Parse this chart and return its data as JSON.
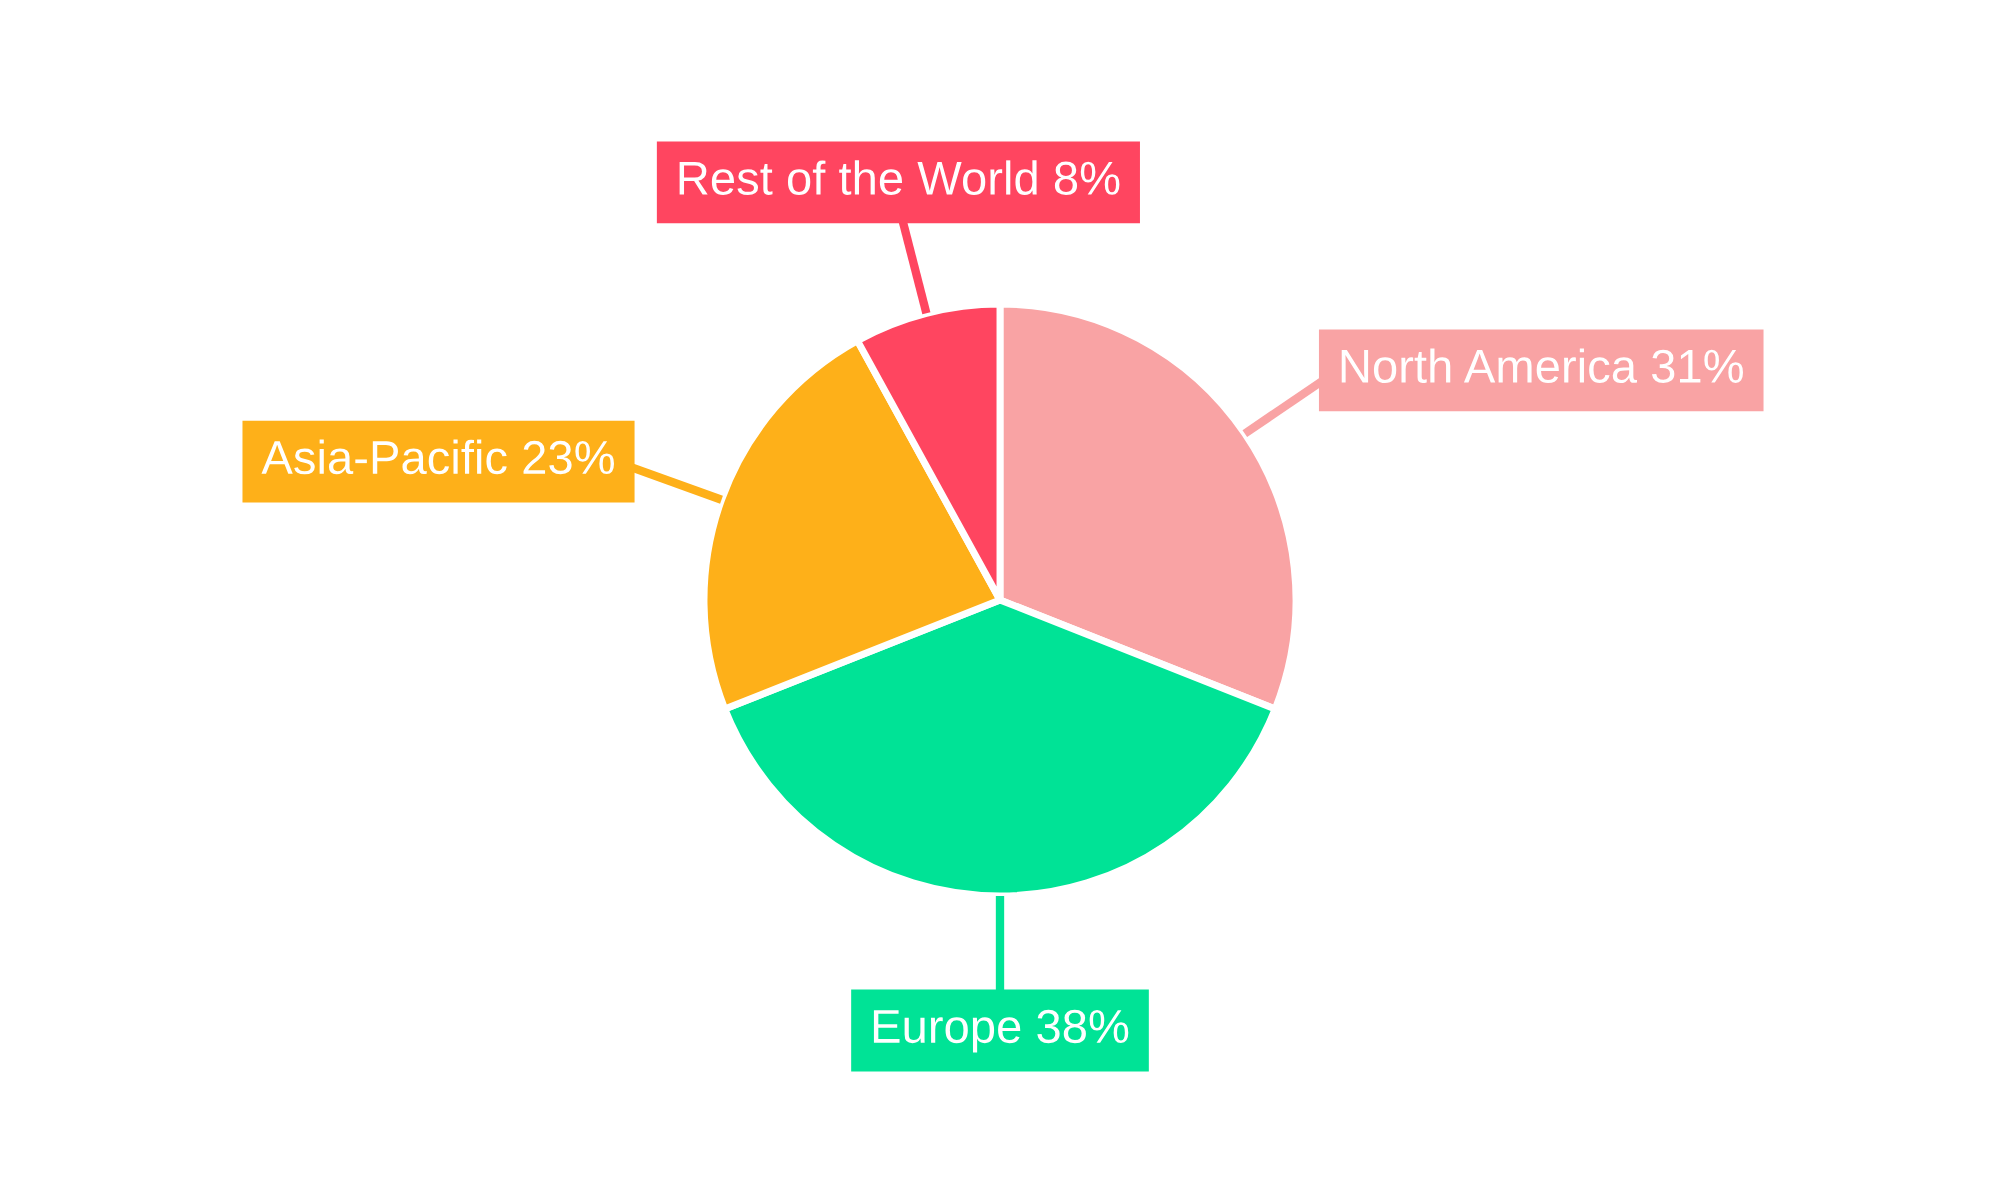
{
  "chart_data": {
    "type": "pie",
    "categories": [
      "North America",
      "Europe",
      "Asia-Pacific",
      "Rest of the World"
    ],
    "values": [
      31,
      38,
      23,
      8
    ],
    "colors": [
      "#f9a3a4",
      "#00e396",
      "#feb019",
      "#ff4560"
    ],
    "value_labels": [
      "31%",
      "38%",
      "23%",
      "8%"
    ],
    "legend": false
  }
}
